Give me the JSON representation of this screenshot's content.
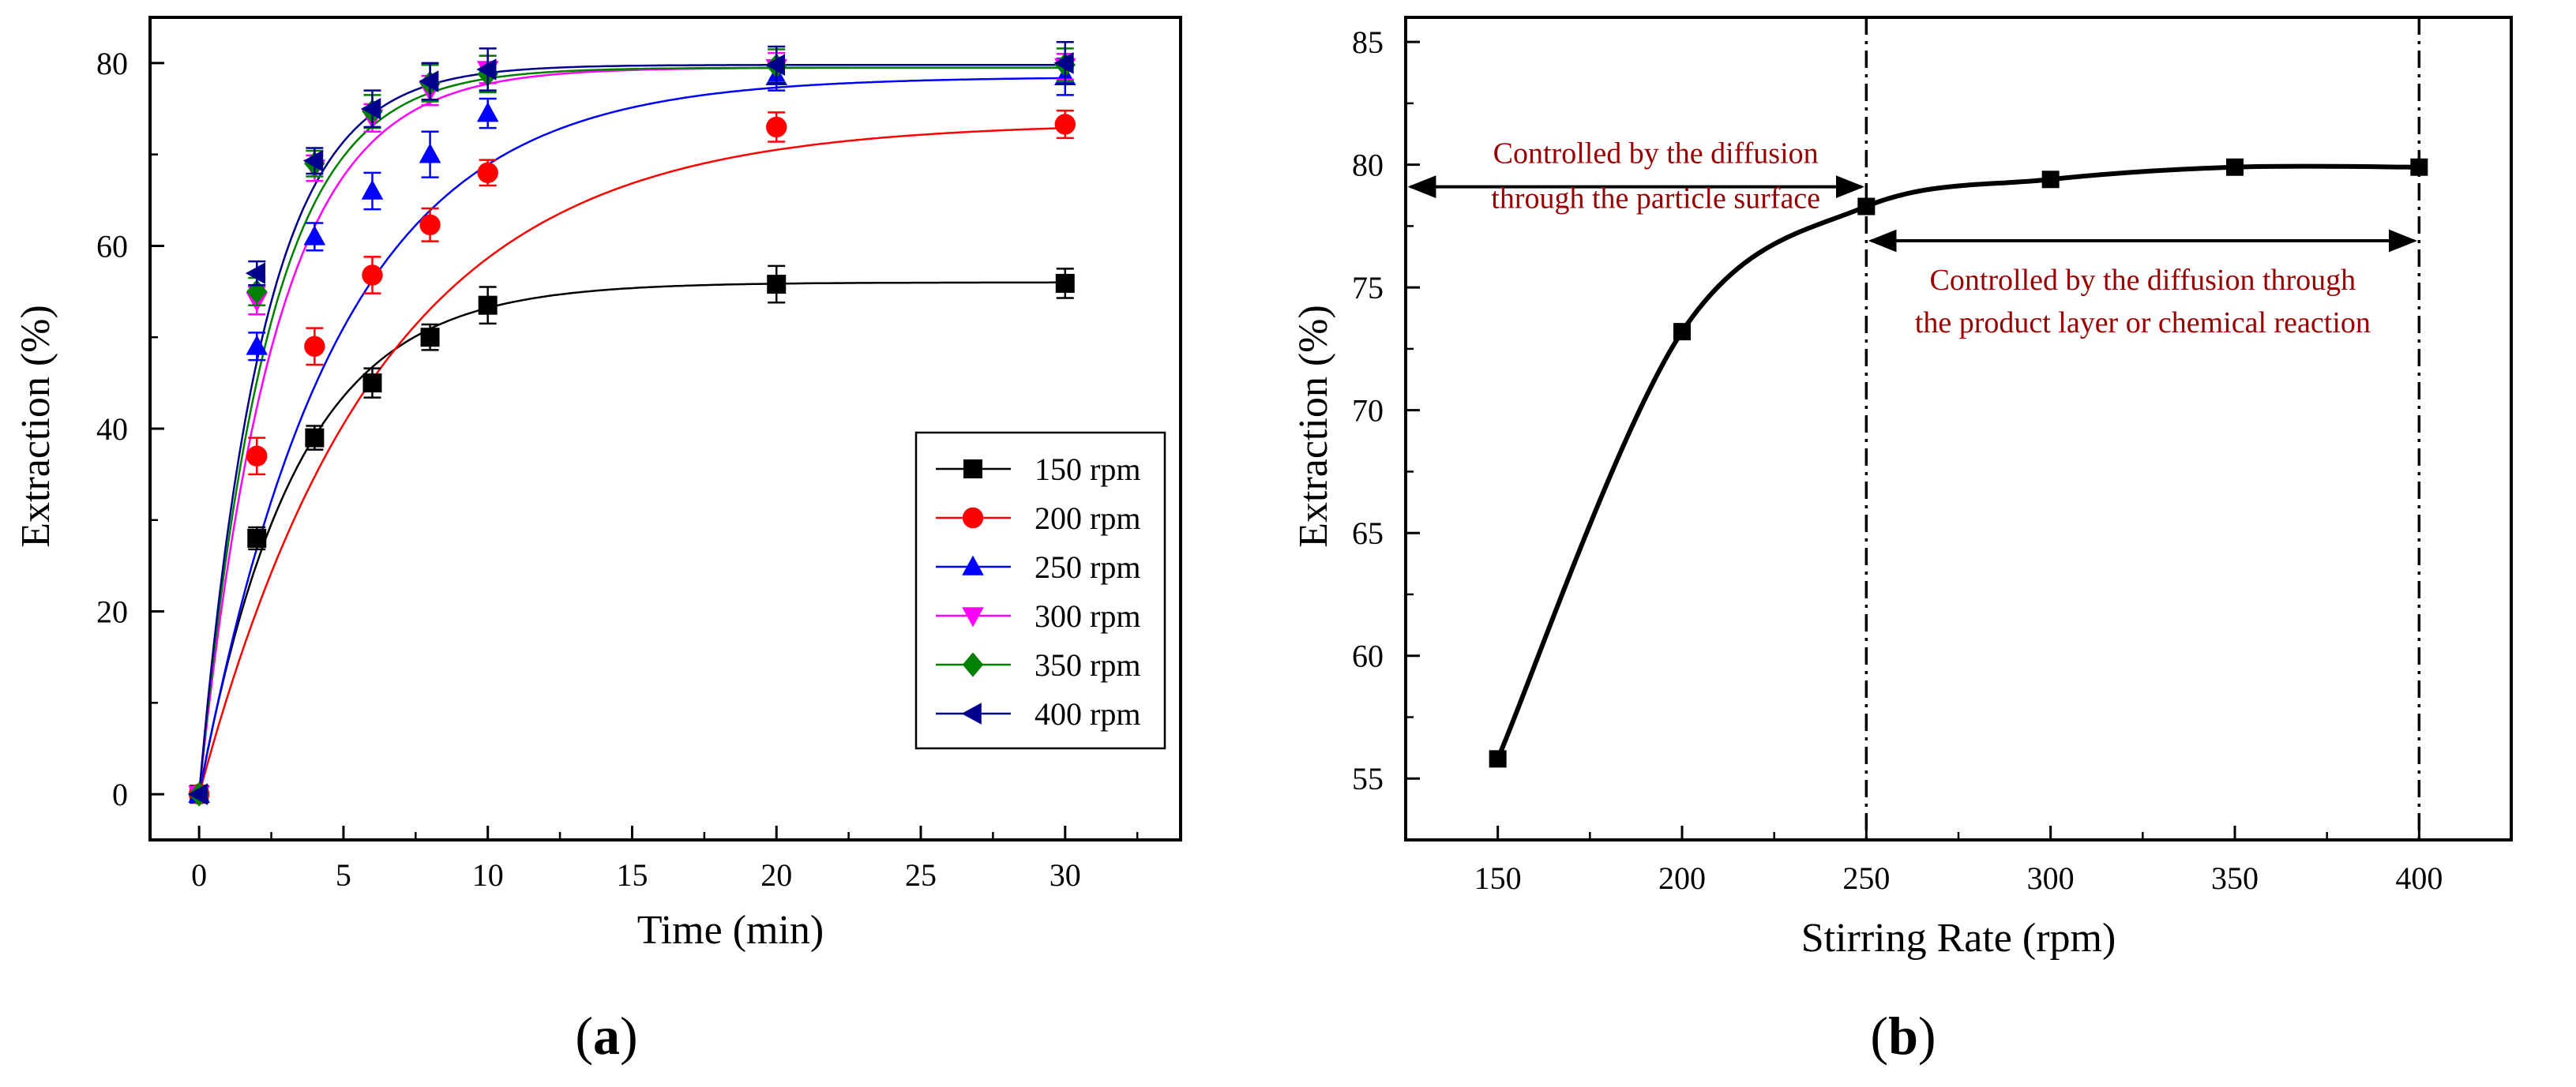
{
  "chart_data": [
    {
      "panel": "(a)",
      "type": "line",
      "xlabel": "Time (min)",
      "ylabel": "Extraction (%)",
      "xlim": [
        -1.7,
        34
      ],
      "ylim": [
        -5,
        85
      ],
      "xticks": [
        0,
        5,
        10,
        15,
        20,
        25,
        30
      ],
      "yticks": [
        0,
        20,
        40,
        60,
        80
      ],
      "x": [
        0,
        2,
        4,
        6,
        8,
        10,
        20,
        30
      ],
      "legend_position": "lower-right",
      "series": [
        {
          "name": "150 rpm",
          "color": "#000000",
          "marker": "square",
          "values": [
            0,
            28,
            39,
            45,
            50,
            53.5,
            55.8,
            55.9
          ],
          "errors": [
            0,
            1.2,
            1.3,
            1.6,
            1.4,
            2.0,
            2.0,
            1.6
          ],
          "fit": {
            "a": 56.0,
            "k": 0.3
          }
        },
        {
          "name": "200 rpm",
          "color": "#ff0000",
          "marker": "circle",
          "values": [
            0,
            37,
            49,
            56.8,
            62.3,
            68,
            73,
            73.3
          ],
          "errors": [
            0,
            2.0,
            2.0,
            2.0,
            1.8,
            1.4,
            1.6,
            1.5
          ],
          "fit": {
            "a": 73.5,
            "k": 0.16
          }
        },
        {
          "name": "250 rpm",
          "color": "#0000ff",
          "marker": "triangle-up",
          "values": [
            0,
            49,
            61,
            66,
            70,
            74.5,
            78.5,
            78.5
          ],
          "errors": [
            0,
            1.5,
            1.5,
            2.0,
            2.5,
            1.6,
            1.5,
            2.0
          ],
          "fit": {
            "a": 78.5,
            "k": 0.21
          }
        },
        {
          "name": "300 rpm",
          "color": "#ff00ff",
          "marker": "triangle-down",
          "values": [
            0,
            54,
            68.5,
            74,
            77,
            79.3,
            79.5,
            79.6
          ],
          "errors": [
            0,
            1.5,
            1.4,
            1.5,
            1.6,
            1.5,
            1.6,
            1.4
          ],
          "fit": {
            "a": 79.5,
            "k": 0.38
          }
        },
        {
          "name": "350 rpm",
          "color": "#008000",
          "marker": "diamond",
          "values": [
            0,
            55,
            69,
            74.7,
            77.8,
            78.8,
            79.7,
            79.8
          ],
          "errors": [
            0,
            1.5,
            1.4,
            1.8,
            2.0,
            2.0,
            1.8,
            1.8
          ],
          "fit": {
            "a": 79.5,
            "k": 0.42
          }
        },
        {
          "name": "400 rpm",
          "color": "#00008b",
          "marker": "triangle-left",
          "values": [
            0,
            57,
            69.3,
            75,
            78,
            79.3,
            79.8,
            80
          ],
          "errors": [
            0,
            1.3,
            1.4,
            2.0,
            2.0,
            2.3,
            2.0,
            2.3
          ],
          "fit": {
            "a": 79.8,
            "k": 0.45
          }
        }
      ]
    },
    {
      "panel": "(b)",
      "type": "line",
      "xlabel": "Stirring Rate (rpm)",
      "ylabel": "Extraction (%)",
      "xlim": [
        125,
        425
      ],
      "ylim": [
        52.5,
        86
      ],
      "xticks": [
        150,
        200,
        250,
        300,
        350,
        400
      ],
      "yticks": [
        55,
        60,
        65,
        70,
        75,
        80,
        85
      ],
      "series": [
        {
          "name": "Extraction",
          "color": "#000000",
          "marker": "square",
          "x": [
            150,
            200,
            250,
            300,
            350,
            400
          ],
          "values": [
            55.8,
            73.2,
            78.3,
            79.4,
            79.9,
            79.9
          ]
        }
      ],
      "vlines": [
        250,
        400
      ],
      "annotations": [
        {
          "lines": [
            "Controlled by the diffusion",
            "through the particle surface"
          ],
          "arrow_x": [
            125,
            250
          ],
          "arrow_y": 79.1,
          "color": "#990000"
        },
        {
          "lines": [
            "Controlled by the diffusion through",
            "the product layer or chemical reaction"
          ],
          "arrow_x": [
            250,
            400
          ],
          "arrow_y": 76.9,
          "color": "#990000"
        }
      ]
    }
  ],
  "panel_labels": {
    "a": "a",
    "b": "b"
  }
}
